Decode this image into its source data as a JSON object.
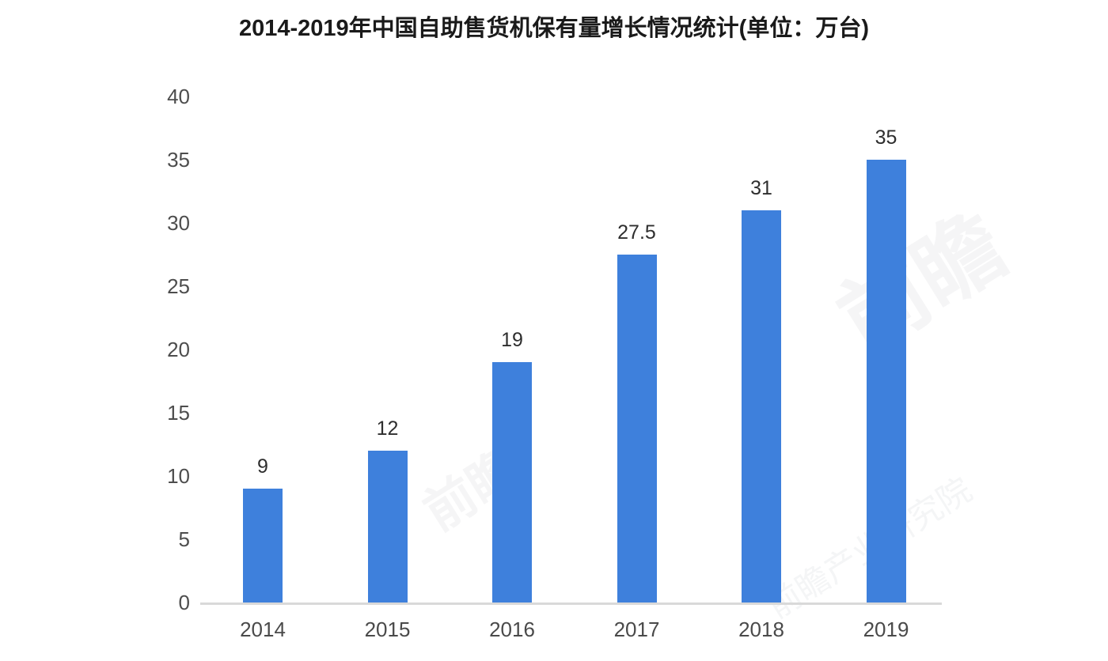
{
  "page_title": "2014-2019年中国自助售货机保有量增长情况统计(单位：万台)",
  "chart_data": {
    "type": "bar",
    "title": "2014-2019年中国自助售货机保有量增长情况统计(单位：万台)",
    "unit": "万台",
    "categories": [
      "2014",
      "2015",
      "2016",
      "2017",
      "2018",
      "2019"
    ],
    "values": [
      9,
      12,
      19,
      27.5,
      31,
      35
    ],
    "data_labels": [
      "9",
      "12",
      "19",
      "27.5",
      "31",
      "35"
    ],
    "xlabel": "",
    "ylabel": "",
    "ylim": [
      0,
      40
    ],
    "ytick_step": 5,
    "ytick_labels": [
      "0",
      "5",
      "10",
      "15",
      "20",
      "25",
      "30",
      "35",
      "40"
    ],
    "grid": false,
    "legend": "none",
    "bar_color": "#3E80DC",
    "axis_line_color": "#D9D9D9",
    "title_color": "#1A1A1A",
    "tick_color": "#4D4D4D",
    "data_label_color": "#2E2E2E"
  },
  "watermark": {
    "short_text": "前瞻",
    "long_text": "前瞻产业研究院"
  }
}
